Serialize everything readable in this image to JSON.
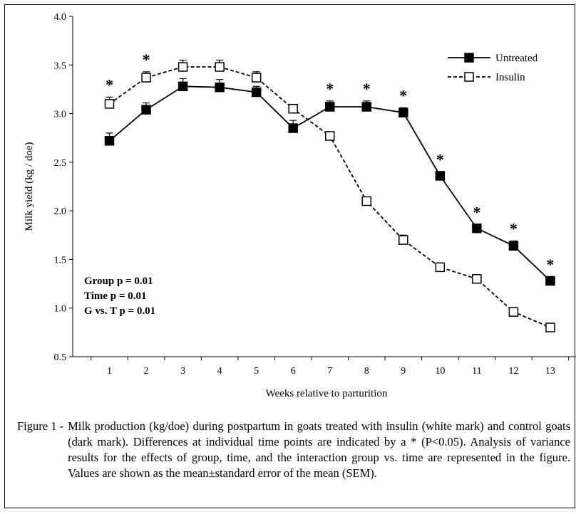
{
  "chart_data": {
    "type": "line",
    "title": "",
    "xlabel": "Weeks relative to parturition",
    "ylabel": "Milk yield (kg / doe)",
    "categories": [
      "1",
      "2",
      "3",
      "4",
      "5",
      "6",
      "7",
      "8",
      "9",
      "10",
      "11",
      "12",
      "13"
    ],
    "x": [
      1,
      2,
      3,
      4,
      5,
      6,
      7,
      8,
      9,
      10,
      11,
      12,
      13
    ],
    "xlim": [
      0,
      13.7
    ],
    "ylim": [
      0.5,
      4.0
    ],
    "yticks": [
      "0.5",
      "1.0",
      "1.5",
      "2.0",
      "2.5",
      "3.0",
      "3.5",
      "4.0"
    ],
    "grid": false,
    "legend_position": "top-right",
    "series": [
      {
        "name": "Untreated",
        "marker": "filled-square",
        "line": "solid",
        "color": "#000000",
        "values": [
          2.72,
          3.04,
          3.28,
          3.27,
          3.22,
          2.85,
          3.07,
          3.07,
          3.01,
          2.36,
          1.82,
          1.64,
          1.28
        ],
        "sem": [
          0.08,
          0.07,
          0.08,
          0.08,
          0.06,
          0.08,
          0.06,
          0.06,
          0.05,
          0.04,
          0.04,
          0.05,
          0.04
        ]
      },
      {
        "name": "Insulin",
        "marker": "open-square",
        "line": "dashed",
        "color": "#000000",
        "values": [
          3.1,
          3.37,
          3.48,
          3.48,
          3.37,
          3.05,
          2.77,
          2.1,
          1.7,
          1.42,
          1.3,
          0.96,
          0.8
        ],
        "sem": [
          0.07,
          0.06,
          0.07,
          0.07,
          0.06,
          0.03,
          0.03,
          0.04,
          0.05,
          0.03,
          0.02,
          0.02,
          0.02
        ]
      }
    ],
    "significance_marker": "*",
    "significant_weeks": [
      1,
      2,
      7,
      8,
      9,
      10,
      11,
      12,
      13
    ],
    "annotations": [
      "Group p = 0.01",
      "Time p = 0.01",
      "G vs. T p = 0.01"
    ]
  },
  "caption": {
    "prefix": "Figure 1 -",
    "text": "Milk production (kg/doe) during postpartum in goats treated with insulin (white mark) and control goats (dark mark). Differences at individual time points are indicated by a * (P<0.05). Analysis of variance results for the effects of group, time, and the interaction group vs. time are represented in the figure. Values are shown as the mean±standard error of the mean (SEM)."
  }
}
